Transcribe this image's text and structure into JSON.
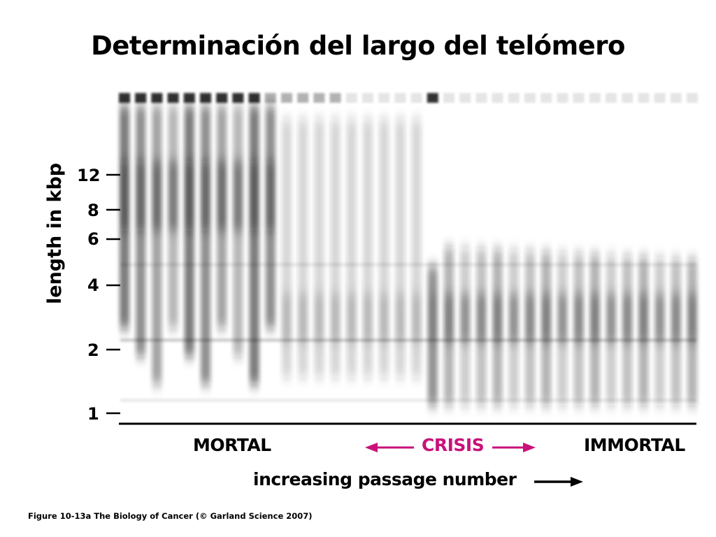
{
  "title": "Determinación del largo del telómero",
  "y_axis_label": "length in kbp",
  "y_ticks": [
    "12",
    "8",
    "6",
    "4",
    "2",
    "1"
  ],
  "phases": {
    "mortal": "MORTAL",
    "crisis": "CRISIS",
    "immortal": "IMMORTAL"
  },
  "passage_label": "increasing passage number",
  "caption": "Figure 10-13a  The Biology of Cancer (© Garland Science 2007)",
  "colors": {
    "crisis": "#c8127a",
    "band": "#1a1a1a"
  }
}
